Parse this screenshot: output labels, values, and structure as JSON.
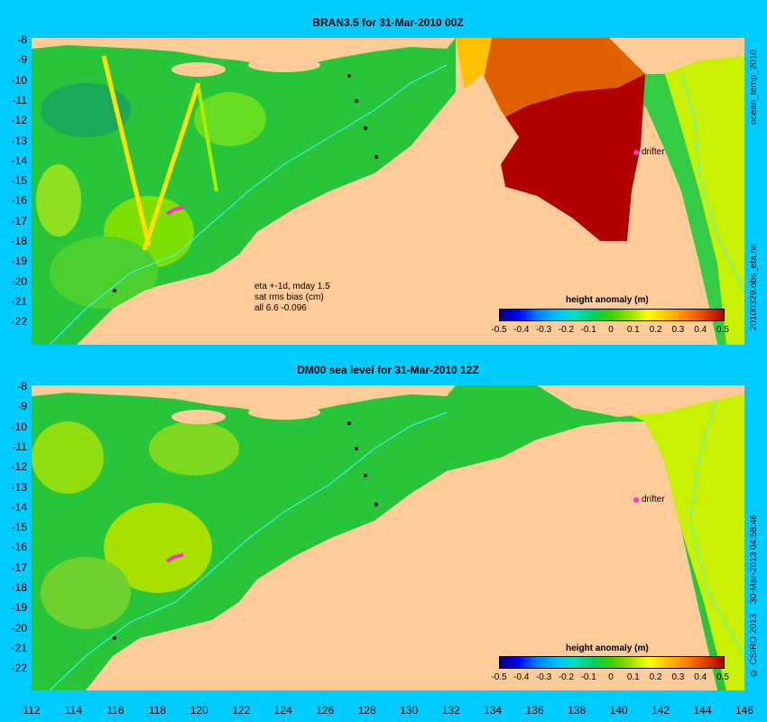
{
  "top_map": {
    "title": "BRAN3.5 for 31-Mar-2010 00Z",
    "side_label": "ocean_temp_2010",
    "file_label": "20100329.obs_eta.nc",
    "note": [
      "eta +-1d, mday 1.5",
      "sat rms bias (cm)",
      "all 6.6 -0.096"
    ],
    "drifter_label": "drifter",
    "colorbar_title": "height anomaly (m)"
  },
  "bottom_map": {
    "title": "DM00 sea level  for 31-Mar-2010 12Z",
    "side_label": "30-Mar-2013 04:58:46",
    "copyright": "© CSIRO 2013",
    "drifter_label": "drifter",
    "colorbar_title": "height anomaly (m)"
  },
  "y_ticks": [
    "-8",
    "-9",
    "-10",
    "-11",
    "-12",
    "-13",
    "-14",
    "-15",
    "-16",
    "-17",
    "-18",
    "-19",
    "-20",
    "-21",
    "-22"
  ],
  "x_ticks": [
    "112",
    "114",
    "116",
    "118",
    "120",
    "122",
    "124",
    "126",
    "128",
    "130",
    "132",
    "134",
    "136",
    "138",
    "140",
    "142",
    "144",
    "146"
  ],
  "colorbar_ticks": [
    "-0.5",
    "-0.4",
    "-0.3",
    "-0.2",
    "-0.1",
    "0",
    "0.1",
    "0.2",
    "0.3",
    "0.4",
    "0.5"
  ],
  "colors": {
    "background": "#00ccff",
    "land": "#ffcc99",
    "ocean_base": "#22cc44",
    "positive_high": "#b00000",
    "drifter_track": "#ff33cc",
    "coast_contour": "#33ffff"
  }
}
